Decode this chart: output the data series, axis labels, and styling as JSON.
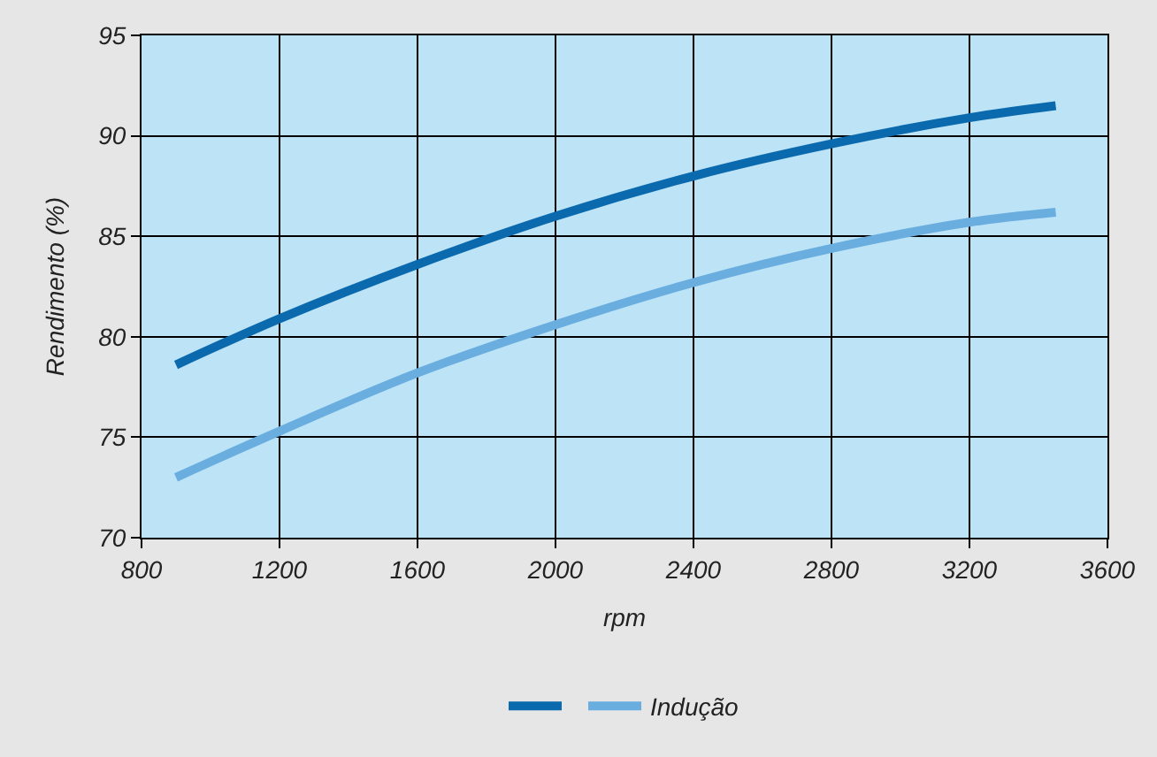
{
  "chart_data": {
    "type": "line",
    "xlabel": "rpm",
    "ylabel": "Rendimento (%)",
    "x": [
      900,
      1200,
      1600,
      2000,
      2400,
      2800,
      3200,
      3450
    ],
    "series": [
      {
        "color": "#0a6aad",
        "values": [
          78.6,
          80.9,
          83.6,
          86.0,
          88.0,
          89.6,
          90.9,
          91.5
        ]
      },
      {
        "name": "Indução",
        "color": "#6aaee0",
        "values": [
          73.0,
          75.3,
          78.2,
          80.6,
          82.7,
          84.4,
          85.7,
          86.2
        ]
      }
    ],
    "xlim": [
      800,
      3600
    ],
    "xticks": [
      800,
      1200,
      1600,
      2000,
      2400,
      2800,
      3200,
      3600
    ],
    "ylim": [
      70,
      95
    ],
    "yticks": [
      70,
      75,
      80,
      85,
      90,
      95
    ],
    "grid": true,
    "legend": "bottom",
    "marker": "none",
    "line_style": "solid"
  }
}
